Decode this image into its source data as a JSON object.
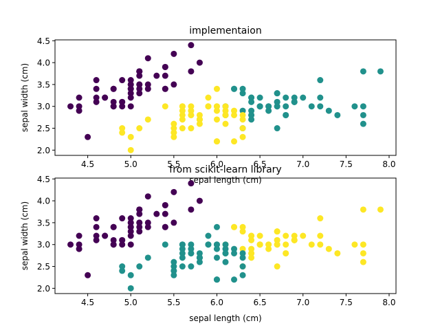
{
  "chart_data": [
    {
      "type": "scatter",
      "title": "implementaion",
      "xlabel": "sepal length (cm)",
      "ylabel": "sepal width (cm)",
      "xlim": [
        4.12,
        8.08
      ],
      "ylim": [
        1.88,
        4.52
      ],
      "xticks": [
        "4.5",
        "5.0",
        "5.5",
        "6.0",
        "6.5",
        "7.0",
        "7.5",
        "8.0"
      ],
      "yticks": [
        "2.0",
        "2.5",
        "3.0",
        "3.5",
        "4.0",
        "4.5"
      ],
      "grid": false,
      "colors": {
        "cluster_0": "#440154",
        "cluster_1": "#21918c",
        "cluster_2": "#fde725"
      },
      "clusters": [
        {
          "color_key": "cluster_0",
          "x": [
            5.1,
            4.9,
            4.7,
            4.6,
            5.0,
            5.4,
            4.6,
            5.0,
            4.4,
            4.9,
            5.4,
            4.8,
            4.8,
            4.3,
            5.8,
            5.7,
            5.4,
            5.1,
            5.7,
            5.1,
            5.4,
            5.1,
            4.6,
            5.1,
            4.8,
            5.0,
            5.0,
            5.2,
            5.2,
            4.7,
            4.8,
            5.4,
            5.2,
            5.5,
            4.9,
            5.0,
            5.5,
            4.9,
            4.4,
            5.1,
            5.0,
            4.5,
            4.4,
            5.0,
            5.1,
            4.8,
            5.1,
            4.6,
            5.3,
            5.0
          ],
          "y": [
            3.5,
            3.0,
            3.2,
            3.1,
            3.6,
            3.9,
            3.4,
            3.4,
            2.9,
            3.1,
            3.7,
            3.4,
            3.0,
            3.0,
            4.0,
            4.4,
            3.9,
            3.5,
            3.8,
            3.8,
            3.4,
            3.7,
            3.6,
            3.3,
            3.4,
            3.0,
            3.4,
            3.5,
            3.4,
            3.2,
            3.1,
            3.4,
            4.1,
            4.2,
            3.1,
            3.2,
            3.5,
            3.6,
            3.0,
            3.4,
            3.5,
            2.3,
            3.2,
            3.5,
            3.8,
            3.0,
            3.8,
            3.2,
            3.7,
            3.3
          ]
        },
        {
          "color_key": "cluster_1",
          "x": [
            7.0,
            6.9,
            6.7,
            7.1,
            6.3,
            6.5,
            7.6,
            7.3,
            6.7,
            7.2,
            6.5,
            6.4,
            6.8,
            6.4,
            6.5,
            7.7,
            7.7,
            6.9,
            7.7,
            6.7,
            7.2,
            6.4,
            7.2,
            7.4,
            7.9,
            6.4,
            7.7,
            6.3,
            6.4,
            6.9,
            6.7,
            6.9,
            6.8,
            6.7,
            6.7,
            6.5,
            6.2,
            6.8,
            6.6,
            6.6,
            6.7,
            6.3,
            6.3,
            6.1,
            6.4,
            6.1,
            6.4,
            6.6,
            6.8,
            6.2
          ],
          "y": [
            3.2,
            3.1,
            3.1,
            3.0,
            3.3,
            3.0,
            3.0,
            2.9,
            2.5,
            3.6,
            3.2,
            2.7,
            3.0,
            3.2,
            3.0,
            3.8,
            2.6,
            3.2,
            2.8,
            3.3,
            3.2,
            2.8,
            3.0,
            2.8,
            3.8,
            2.8,
            3.0,
            3.4,
            3.1,
            3.1,
            3.1,
            3.1,
            3.2,
            3.3,
            3.0,
            3.0,
            3.4,
            2.8,
            2.9,
            3.0,
            3.0,
            2.9,
            2.5,
            3.0,
            2.9,
            2.8,
            3.2,
            3.0,
            2.8,
            3.4
          ]
        },
        {
          "color_key": "cluster_2",
          "x": [
            5.5,
            5.7,
            4.9,
            5.2,
            5.0,
            5.9,
            6.0,
            6.1,
            5.6,
            5.6,
            5.8,
            6.2,
            5.6,
            5.9,
            6.1,
            6.3,
            6.1,
            6.0,
            5.5,
            5.5,
            5.8,
            6.0,
            5.4,
            6.0,
            5.6,
            5.5,
            5.5,
            6.1,
            5.8,
            5.0,
            5.6,
            5.7,
            5.7,
            6.2,
            5.1,
            5.7,
            5.8,
            6.3,
            4.9,
            5.7,
            5.8,
            6.0,
            5.6,
            6.3,
            6.2,
            6.0,
            5.9,
            6.0,
            6.1,
            6.3
          ],
          "y": [
            2.3,
            2.8,
            2.4,
            2.7,
            2.0,
            3.0,
            2.2,
            2.9,
            2.9,
            3.0,
            2.7,
            2.2,
            2.5,
            3.2,
            2.8,
            2.5,
            2.8,
            2.9,
            2.4,
            2.4,
            2.7,
            2.7,
            3.0,
            3.4,
            3.0,
            2.5,
            2.6,
            3.0,
            2.6,
            2.3,
            2.7,
            3.0,
            2.9,
            2.9,
            2.5,
            2.8,
            2.7,
            2.3,
            2.5,
            2.5,
            2.8,
            3.0,
            2.8,
            2.7,
            2.8,
            3.0,
            3.0,
            2.2,
            2.6,
            2.8
          ]
        }
      ]
    },
    {
      "type": "scatter",
      "title": "from scikit-learn library",
      "xlabel": "sepal length (cm)",
      "ylabel": "sepal width (cm)",
      "xlim": [
        4.12,
        8.08
      ],
      "ylim": [
        1.88,
        4.52
      ],
      "xticks": [
        "4.5",
        "5.0",
        "5.5",
        "6.0",
        "6.5",
        "7.0",
        "7.5",
        "8.0"
      ],
      "yticks": [
        "2.0",
        "2.5",
        "3.0",
        "3.5",
        "4.0",
        "4.5"
      ],
      "grid": false,
      "colors": {
        "cluster_0": "#440154",
        "cluster_1": "#21918c",
        "cluster_2": "#fde725"
      },
      "clusters": [
        {
          "color_key": "cluster_0",
          "x": [
            5.1,
            4.9,
            4.7,
            4.6,
            5.0,
            5.4,
            4.6,
            5.0,
            4.4,
            4.9,
            5.4,
            4.8,
            4.8,
            4.3,
            5.8,
            5.7,
            5.4,
            5.1,
            5.7,
            5.1,
            5.4,
            5.1,
            4.6,
            5.1,
            4.8,
            5.0,
            5.0,
            5.2,
            5.2,
            4.7,
            4.8,
            5.4,
            5.2,
            5.5,
            4.9,
            5.0,
            5.5,
            4.9,
            4.4,
            5.1,
            5.0,
            4.5,
            4.4,
            5.0,
            5.1,
            4.8,
            5.1,
            4.6,
            5.3,
            5.0
          ],
          "y": [
            3.5,
            3.0,
            3.2,
            3.1,
            3.6,
            3.9,
            3.4,
            3.4,
            2.9,
            3.1,
            3.7,
            3.4,
            3.0,
            3.0,
            4.0,
            4.4,
            3.9,
            3.5,
            3.8,
            3.8,
            3.4,
            3.7,
            3.6,
            3.3,
            3.4,
            3.0,
            3.4,
            3.5,
            3.4,
            3.2,
            3.1,
            3.4,
            4.1,
            4.2,
            3.1,
            3.2,
            3.5,
            3.6,
            3.0,
            3.4,
            3.5,
            2.3,
            3.2,
            3.5,
            3.8,
            3.0,
            3.8,
            3.2,
            3.7,
            3.3
          ]
        },
        {
          "color_key": "cluster_2",
          "x": [
            7.0,
            6.9,
            6.7,
            7.1,
            6.3,
            6.5,
            7.6,
            7.3,
            6.7,
            7.2,
            6.5,
            6.4,
            6.8,
            6.4,
            6.5,
            7.7,
            7.7,
            6.9,
            7.7,
            6.7,
            7.2,
            6.4,
            7.2,
            7.4,
            7.9,
            6.4,
            7.7,
            6.3,
            6.4,
            6.9,
            6.7,
            6.9,
            6.8,
            6.7,
            6.7,
            6.5,
            6.2,
            6.8,
            6.6,
            6.6,
            6.7,
            6.3,
            6.3,
            6.1,
            6.4,
            6.1,
            6.4,
            6.6,
            6.8,
            6.2
          ],
          "y": [
            3.2,
            3.1,
            3.1,
            3.0,
            3.3,
            3.0,
            3.0,
            2.9,
            2.5,
            3.6,
            3.2,
            2.7,
            3.0,
            3.2,
            3.0,
            3.8,
            2.6,
            3.2,
            2.8,
            3.3,
            3.2,
            2.8,
            3.0,
            2.8,
            3.8,
            2.8,
            3.0,
            3.4,
            3.1,
            3.1,
            3.1,
            3.1,
            3.2,
            3.3,
            3.0,
            3.0,
            3.4,
            2.8,
            2.9,
            3.0,
            3.0,
            2.9,
            2.5,
            3.0,
            2.9,
            2.8,
            3.2,
            3.0,
            2.8,
            3.4
          ]
        },
        {
          "color_key": "cluster_1",
          "x": [
            5.5,
            5.7,
            4.9,
            5.2,
            5.0,
            5.9,
            6.0,
            6.1,
            5.6,
            5.6,
            5.8,
            6.2,
            5.6,
            5.9,
            6.1,
            6.3,
            6.1,
            6.0,
            5.5,
            5.5,
            5.8,
            6.0,
            5.4,
            6.0,
            5.6,
            5.5,
            5.5,
            6.1,
            5.8,
            5.0,
            5.6,
            5.7,
            5.7,
            6.2,
            5.1,
            5.7,
            5.8,
            6.3,
            4.9,
            5.7,
            5.8,
            6.0,
            5.6,
            6.3,
            6.2,
            6.0,
            5.9,
            6.0,
            6.1,
            6.3
          ],
          "y": [
            2.3,
            2.8,
            2.4,
            2.7,
            2.0,
            3.0,
            2.2,
            2.9,
            2.9,
            3.0,
            2.7,
            2.2,
            2.5,
            3.2,
            2.8,
            2.5,
            2.8,
            2.9,
            2.4,
            2.4,
            2.7,
            2.7,
            3.0,
            3.4,
            3.0,
            2.5,
            2.6,
            3.0,
            2.6,
            2.3,
            2.7,
            3.0,
            2.9,
            2.9,
            2.5,
            2.8,
            2.7,
            2.3,
            2.5,
            2.5,
            2.8,
            3.0,
            2.8,
            2.7,
            2.8,
            3.0,
            3.0,
            2.2,
            2.6,
            2.8
          ]
        }
      ]
    }
  ]
}
